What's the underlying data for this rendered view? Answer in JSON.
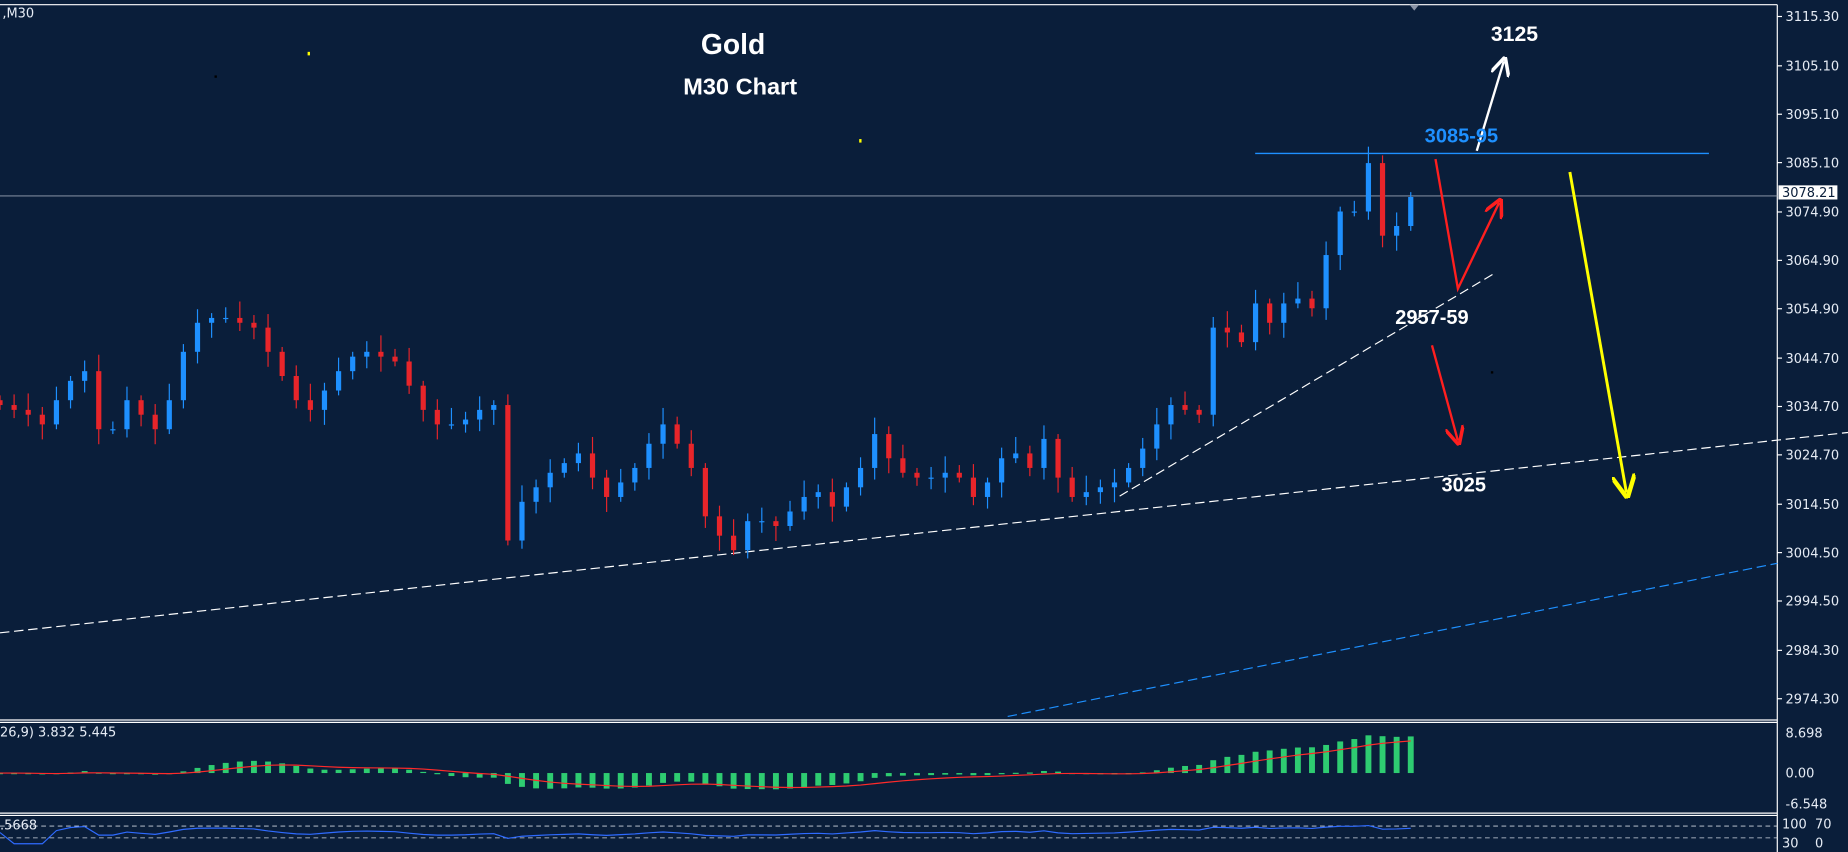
{
  "window": {
    "symbol_label": ",M30"
  },
  "annotations": {
    "title": "Gold",
    "subtitle": "M30 Chart",
    "target_up": "3125",
    "resistance": "3085-95",
    "support_mid": "2957-59",
    "support_low": "3025"
  },
  "colors": {
    "background": "#0a1e3a",
    "bull_candle": "#1e90ff",
    "bear_candle": "#e8252a",
    "macd_histogram": "#2ecc71",
    "macd_signal": "#ff2a2a",
    "rsi_line": "#2f6bff",
    "resistance_line": "#1e90ff",
    "arrow_up": "#ffffff",
    "arrow_red": "#ff1f1f",
    "arrow_yellow": "#ffff00"
  },
  "chart_data": {
    "type": "candlestick",
    "timeframe": "M30",
    "ylim": [
      2970,
      3118
    ],
    "y_ticks": [
      "3115.30",
      "3105.10",
      "3095.10",
      "3085.10",
      "3074.90",
      "3064.90",
      "3054.90",
      "3044.70",
      "3034.70",
      "3024.70",
      "3014.50",
      "3004.50",
      "2994.50",
      "2984.30",
      "2974.30"
    ],
    "current_price": "3078.21",
    "closes": [
      3035,
      3034,
      3033,
      3031,
      3036,
      3040,
      3042,
      3030,
      3030,
      3036,
      3033,
      3030,
      3036,
      3046,
      3052,
      3053,
      3053,
      3052,
      3051,
      3046,
      3041,
      3036,
      3034,
      3038,
      3042,
      3045,
      3046,
      3045,
      3044,
      3039,
      3034,
      3031,
      3031,
      3032,
      3034,
      3035,
      3007,
      3015,
      3018,
      3021,
      3023,
      3025,
      3020,
      3016,
      3019,
      3022,
      3027,
      3031,
      3027,
      3022,
      3012,
      3008,
      3005,
      3011,
      3011,
      3010,
      3013,
      3016,
      3017,
      3014,
      3018,
      3022,
      3029,
      3024,
      3021,
      3020,
      3020,
      3021,
      3020,
      3016,
      3019,
      3024,
      3025,
      3022,
      3028,
      3020,
      3016,
      3017,
      3018,
      3019,
      3022,
      3026,
      3031,
      3035,
      3034,
      3033,
      3051,
      3050,
      3048,
      3056,
      3052,
      3056,
      3057,
      3055,
      3066,
      3075,
      3075,
      3085,
      3070,
      3072,
      3078
    ],
    "resistance_level": 3087,
    "macd": {
      "legend": "26,9) 3.832 5.445",
      "y_ticks": [
        "8.698",
        "0.00",
        "-6.548"
      ]
    },
    "rsi": {
      "legend": ".5668",
      "y_ticks": [
        "100",
        "70",
        "30",
        "0"
      ],
      "levels": [
        70,
        30
      ]
    }
  }
}
